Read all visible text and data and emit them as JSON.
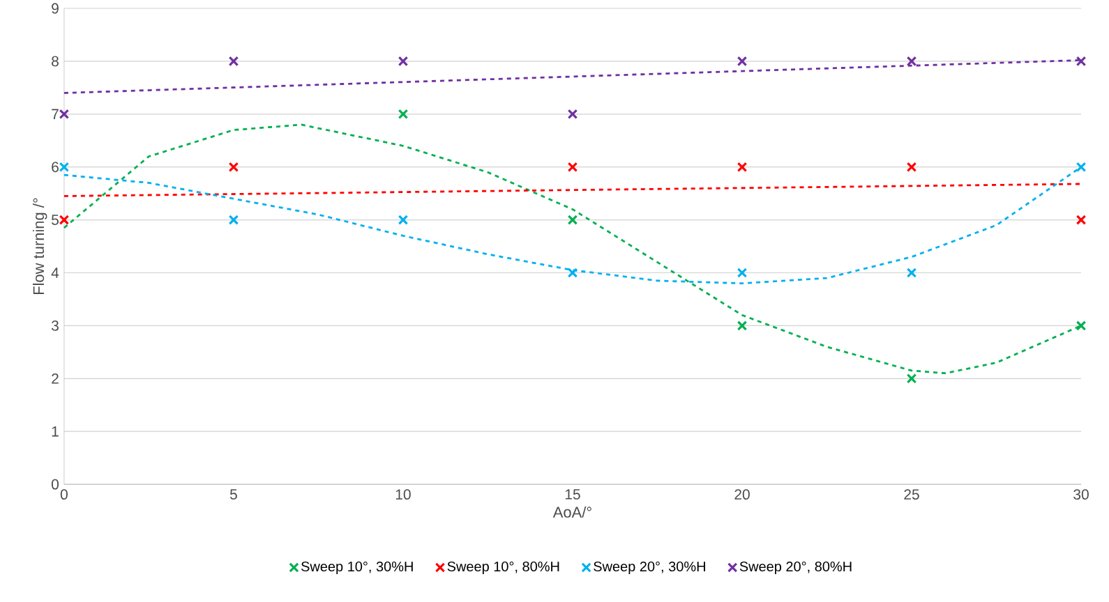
{
  "chart_data": {
    "type": "scatter",
    "xlabel": "AoA/°",
    "ylabel": "Flow turning /°",
    "xlim": [
      0,
      30
    ],
    "ylim": [
      0,
      9
    ],
    "xticks": [
      0,
      5,
      10,
      15,
      20,
      25,
      30
    ],
    "yticks": [
      0,
      1,
      2,
      3,
      4,
      5,
      6,
      7,
      8,
      9
    ],
    "grid": "y",
    "legend": "bottom",
    "marker": "cross",
    "series": [
      {
        "name": "Sweep 10°, 30%H",
        "color": "#00b050",
        "x": [
          10,
          15,
          20,
          25,
          30
        ],
        "values": [
          7,
          5,
          3,
          2,
          3
        ]
      },
      {
        "name": "Sweep 10°, 80%H",
        "color": "#ff0000",
        "x": [
          0,
          5,
          10,
          15,
          20,
          25,
          30
        ],
        "values": [
          5,
          6,
          null,
          6,
          6,
          6,
          5
        ]
      },
      {
        "name": "Sweep 20°, 30%H",
        "color": "#00b0f0",
        "x": [
          0,
          5,
          10,
          15,
          20,
          25,
          30
        ],
        "values": [
          6,
          5,
          5,
          4,
          4,
          4,
          6
        ]
      },
      {
        "name": "Sweep 20°, 80%H",
        "color": "#7030a0",
        "x": [
          0,
          5,
          10,
          15,
          20,
          25,
          30
        ],
        "values": [
          7,
          8,
          8,
          7,
          8,
          8,
          8
        ]
      },
      {
        "type": "line",
        "line_style": "dashed",
        "marker": "none",
        "color": "#00b050",
        "x": [
          0,
          2.5,
          5,
          7,
          10,
          12.5,
          15,
          17.5,
          20,
          22.5,
          25,
          26,
          27.5,
          30
        ],
        "values": [
          4.85,
          6.2,
          6.7,
          6.8,
          6.4,
          5.9,
          5.2,
          4.2,
          3.2,
          2.6,
          2.15,
          2.1,
          2.3,
          3.0
        ]
      },
      {
        "type": "line",
        "line_style": "dashed",
        "marker": "none",
        "color": "#ff0000",
        "x": [
          0,
          30
        ],
        "values": [
          5.45,
          5.68
        ]
      },
      {
        "type": "line",
        "line_style": "dashed",
        "marker": "none",
        "color": "#00b0f0",
        "x": [
          0,
          2.5,
          5,
          7.5,
          10,
          12.5,
          15,
          17.5,
          20,
          22.5,
          25,
          27.5,
          30
        ],
        "values": [
          5.85,
          5.7,
          5.4,
          5.1,
          4.7,
          4.35,
          4.05,
          3.85,
          3.8,
          3.9,
          4.3,
          4.9,
          6.0
        ]
      },
      {
        "type": "line",
        "line_style": "dashed",
        "marker": "none",
        "color": "#7030a0",
        "x": [
          0,
          30
        ],
        "values": [
          7.4,
          8.02
        ]
      }
    ]
  }
}
